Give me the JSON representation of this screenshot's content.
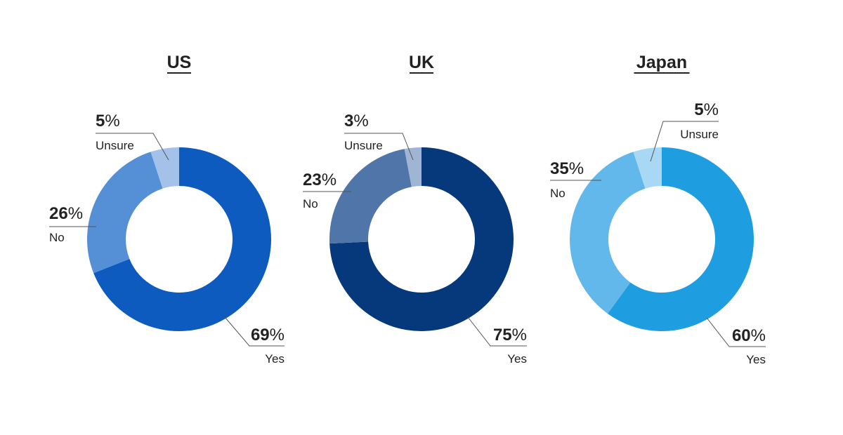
{
  "chart_data": [
    {
      "type": "pie",
      "title": "US",
      "unit": "%",
      "slices": [
        {
          "label": "Yes",
          "value": 69,
          "display": "69",
          "color": "#0d5bbf"
        },
        {
          "label": "No",
          "value": 26,
          "display": "26",
          "color": "#5590d6"
        },
        {
          "label": "Unsure",
          "value": 5,
          "display": "5",
          "color": "#a3c1e9"
        }
      ]
    },
    {
      "type": "pie",
      "title": "UK",
      "unit": "%",
      "slices": [
        {
          "label": "Yes",
          "value": 75,
          "display": "75",
          "color": "#05397c"
        },
        {
          "label": "No",
          "value": 23,
          "display": "23",
          "color": "#5075a8"
        },
        {
          "label": "Unsure",
          "value": 3,
          "display": "3",
          "color": "#9fb5d3"
        }
      ]
    },
    {
      "type": "pie",
      "title": "Japan",
      "unit": "%",
      "slices": [
        {
          "label": "Yes",
          "value": 60,
          "display": "60",
          "color": "#1e9de0"
        },
        {
          "label": "No",
          "value": 35,
          "display": "35",
          "color": "#62b8ea"
        },
        {
          "label": "Unsure",
          "value": 5,
          "display": "5",
          "color": "#a8d8f4"
        }
      ]
    }
  ]
}
